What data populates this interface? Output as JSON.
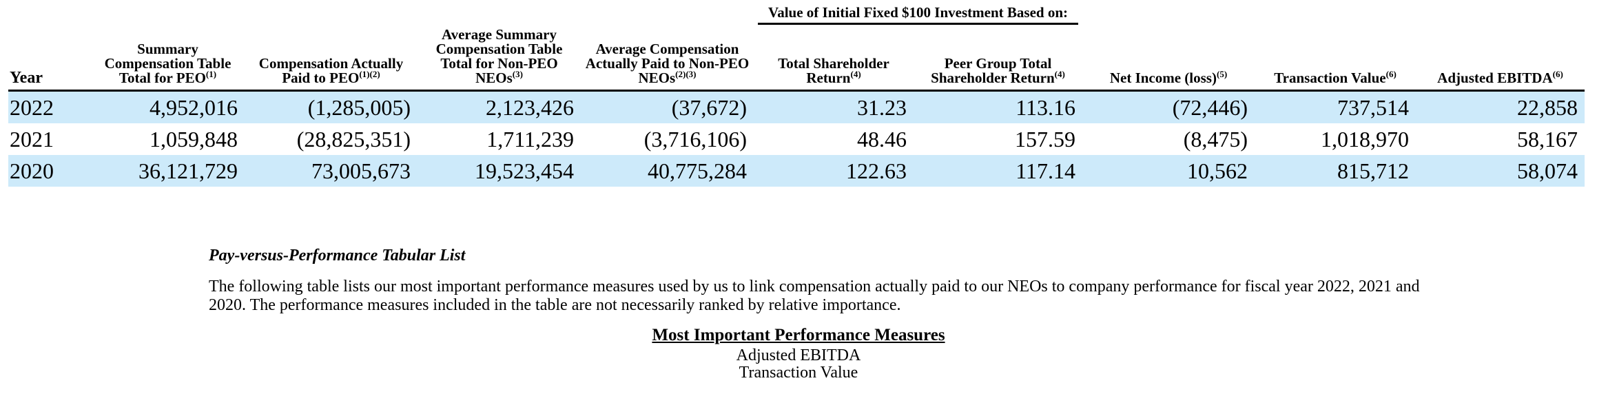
{
  "table": {
    "group_header": "Value of Initial Fixed $100 Investment Based on:",
    "columns": [
      {
        "text": "Year"
      },
      {
        "text": "Summary Compensation Table Total for PEO",
        "sup": "(1)"
      },
      {
        "text": "Compensation Actually Paid to PEO",
        "sup": "(1)(2)"
      },
      {
        "text": "Average Summary Compensation Table Total for Non-PEO NEOs",
        "sup": "(3)"
      },
      {
        "text": "Average Compensation Actually Paid to Non-PEO NEOs",
        "sup": "(2)(3)"
      },
      {
        "text": "Total Shareholder Return",
        "sup": "(4)"
      },
      {
        "text": "Peer Group Total Shareholder Return",
        "sup": "(4)"
      },
      {
        "text": "Net Income (loss)",
        "sup": "(5)"
      },
      {
        "text": "Transaction Value",
        "sup": "(6)"
      },
      {
        "text": "Adjusted EBITDA",
        "sup": "(6)"
      }
    ],
    "rows": [
      [
        "2022",
        "4,952,016",
        "(1,285,005)",
        "2,123,426",
        "(37,672)",
        "31.23",
        "113.16",
        "(72,446)",
        "737,514",
        "22,858"
      ],
      [
        "2021",
        "1,059,848",
        "(28,825,351)",
        "1,711,239",
        "(3,716,106)",
        "48.46",
        "157.59",
        "(8,475)",
        "1,018,970",
        "58,167"
      ],
      [
        "2020",
        "36,121,729",
        "73,005,673",
        "19,523,454",
        "40,775,284",
        "122.63",
        "117.14",
        "10,562",
        "815,712",
        "58,074"
      ]
    ]
  },
  "section": {
    "title": "Pay-versus-Performance Tabular List",
    "paragraph": "The following table lists our most important performance measures used by us to link compensation actually paid to our NEOs to company performance for fiscal year 2022, 2021 and 2020. The performance measures included in the table are not necessarily ranked by relative importance.",
    "measures_title": "Most Important Performance Measures",
    "measures": [
      "Adjusted EBITDA",
      "Transaction Value"
    ]
  }
}
